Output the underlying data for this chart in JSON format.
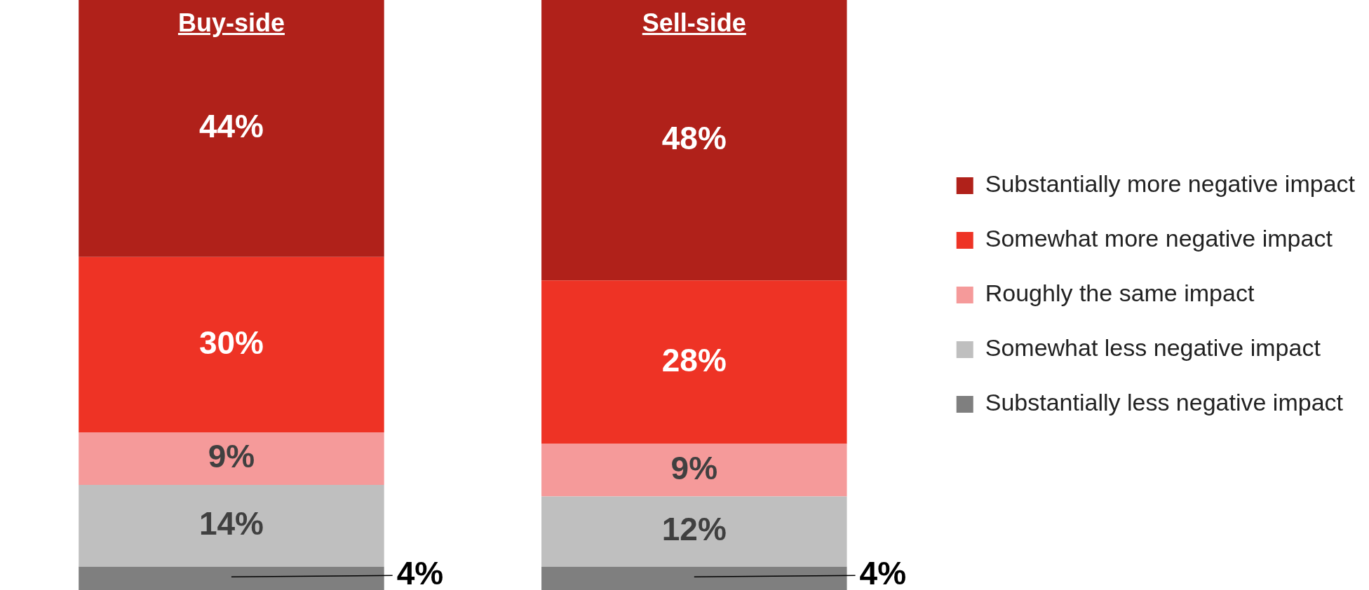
{
  "chart_data": {
    "type": "bar",
    "stacked": true,
    "categories": [
      "Buy-side",
      "Sell-side"
    ],
    "series": [
      {
        "name": "Substantially less negative impact",
        "color": "#7f7f7f",
        "values": [
          4,
          4
        ],
        "value_labels": [
          "4%",
          "4%"
        ]
      },
      {
        "name": "Somewhat less negative impact",
        "color": "#bfbfbf",
        "values": [
          14,
          12
        ],
        "value_labels": [
          "14%",
          "12%"
        ]
      },
      {
        "name": "Roughly the same impact",
        "color": "#f59a9a",
        "values": [
          9,
          9
        ],
        "value_labels": [
          "9%",
          "9%"
        ]
      },
      {
        "name": "Somewhat more negative impact",
        "color": "#ee3325",
        "values": [
          30,
          28
        ],
        "value_labels": [
          "30%",
          "28%"
        ]
      },
      {
        "name": "Substantially more negative impact",
        "color": "#b0211a",
        "values": [
          44,
          48
        ],
        "value_labels": [
          "44%",
          "48%"
        ]
      }
    ],
    "legend": "right",
    "tick_labels": false
  }
}
